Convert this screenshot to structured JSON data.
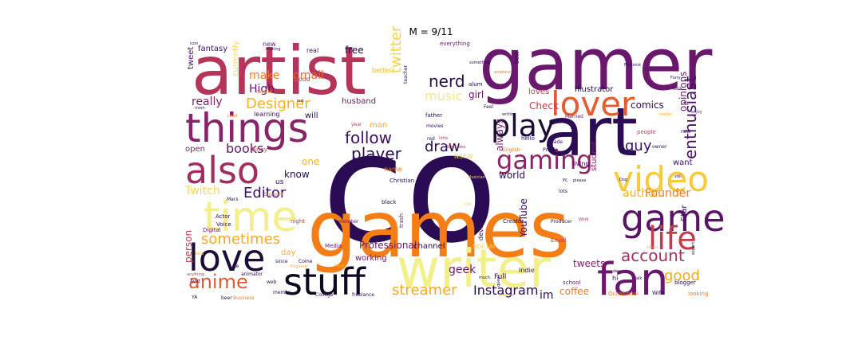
{
  "chart_data": {
    "type": "wordcloud",
    "title": "M = 9/11",
    "words": [
      {
        "text": "co",
        "weight": 100,
        "color": "#2a0b54"
      },
      {
        "text": "games",
        "weight": 86,
        "color": "#f57d15"
      },
      {
        "text": "gamer",
        "weight": 82,
        "color": "#6a176e"
      },
      {
        "text": "artist",
        "weight": 80,
        "color": "#b5345a"
      },
      {
        "text": "art",
        "weight": 74,
        "color": "#2a0b54"
      },
      {
        "text": "writer",
        "weight": 66,
        "color": "#f3f08a"
      },
      {
        "text": "fan",
        "weight": 56,
        "color": "#6a176e"
      },
      {
        "text": "time",
        "weight": 54,
        "color": "#f5ee8c"
      },
      {
        "text": "things",
        "weight": 50,
        "color": "#8a2269"
      },
      {
        "text": "also",
        "weight": 48,
        "color": "#a52c60"
      },
      {
        "text": "game",
        "weight": 46,
        "color": "#5b1368"
      },
      {
        "text": "video",
        "weight": 46,
        "color": "#f8c93b"
      },
      {
        "text": "lover",
        "weight": 44,
        "color": "#e35d2f"
      },
      {
        "text": "love",
        "weight": 42,
        "color": "#1c0c3a"
      },
      {
        "text": "stuff",
        "weight": 42,
        "color": "#0f0820"
      },
      {
        "text": "life",
        "weight": 38,
        "color": "#c13c4c"
      },
      {
        "text": "play",
        "weight": 36,
        "color": "#1c0c3a"
      },
      {
        "text": "gaming",
        "weight": 32,
        "color": "#8e2468"
      },
      {
        "text": "anime",
        "weight": 28,
        "color": "#df5a35"
      },
      {
        "text": "account",
        "weight": 24,
        "color": "#a82e5f"
      },
      {
        "text": "Designer",
        "weight": 22,
        "color": "#f9b21c"
      },
      {
        "text": "sometimes",
        "weight": 22,
        "color": "#f9a81a"
      },
      {
        "text": "follow",
        "weight": 22,
        "color": "#3b0f70"
      },
      {
        "text": "nerd",
        "weight": 22,
        "color": "#2a0b54"
      },
      {
        "text": "twitter",
        "weight": 22,
        "color": "#f8d23c"
      },
      {
        "text": "music",
        "weight": 20,
        "color": "#f5e78a"
      },
      {
        "text": "enthusiast",
        "weight": 20,
        "color": "#4b0c6b"
      },
      {
        "text": "Editor",
        "weight": 20,
        "color": "#3b0f70"
      },
      {
        "text": "player",
        "weight": 20,
        "color": "#2a0b54"
      },
      {
        "text": "streamer",
        "weight": 20,
        "color": "#f9a81a"
      },
      {
        "text": "Instagram",
        "weight": 18,
        "color": "#2a0b54"
      },
      {
        "text": "books",
        "weight": 18,
        "color": "#6a176e"
      },
      {
        "text": "guy",
        "weight": 18,
        "color": "#3b0f70"
      },
      {
        "text": "good",
        "weight": 18,
        "color": "#f9a81a"
      },
      {
        "text": "draw",
        "weight": 18,
        "color": "#2a0b54"
      },
      {
        "text": "Twitch",
        "weight": 16,
        "color": "#f9d55a"
      },
      {
        "text": "really",
        "weight": 16,
        "color": "#7b1d6b"
      },
      {
        "text": "make",
        "weight": 16,
        "color": "#f27a1d"
      },
      {
        "text": "High",
        "weight": 14,
        "color": "#6a176e"
      },
      {
        "text": "gmail",
        "weight": 16,
        "color": "#e8652a"
      },
      {
        "text": "person",
        "weight": 14,
        "color": "#c13c4c"
      },
      {
        "text": "geek",
        "weight": 16,
        "color": "#6a176e"
      },
      {
        "text": "author",
        "weight": 16,
        "color": "#f9b21c"
      },
      {
        "text": "Founder",
        "weight": 14,
        "color": "#f27a1d"
      },
      {
        "text": "Professional",
        "weight": 14,
        "color": "#6a176e"
      },
      {
        "text": "YouTube",
        "weight": 14,
        "color": "#3b0f70"
      },
      {
        "text": "tweets",
        "weight": 14,
        "color": "#7b1d6b"
      },
      {
        "text": "comics",
        "weight": 14,
        "color": "#2a0b54"
      },
      {
        "text": "Check",
        "weight": 14,
        "color": "#c13c4c"
      },
      {
        "text": "always",
        "weight": 12,
        "color": "#7b1d6b"
      },
      {
        "text": "world",
        "weight": 14,
        "color": "#2a0b54"
      },
      {
        "text": "know",
        "weight": 14,
        "color": "#2a0b54"
      },
      {
        "text": "one",
        "weight": 14,
        "color": "#f9b21c"
      },
      {
        "text": "fantasy",
        "weight": 12,
        "color": "#3b0f70"
      },
      {
        "text": "free",
        "weight": 14,
        "color": "#1c0c3a"
      },
      {
        "text": "husband",
        "weight": 12,
        "color": "#6a176e"
      },
      {
        "text": "girl",
        "weight": 14,
        "color": "#6a176e"
      },
      {
        "text": "loves",
        "weight": 12,
        "color": "#c13c4c"
      },
      {
        "text": "opinions",
        "weight": 12,
        "color": "#6a176e"
      },
      {
        "text": "student",
        "weight": 12,
        "color": "#8a2269"
      },
      {
        "text": "want",
        "weight": 12,
        "color": "#3b0f70"
      },
      {
        "text": "Illustrator",
        "weight": 12,
        "color": "#2a0b54"
      },
      {
        "text": "im",
        "weight": 16,
        "color": "#2a0b54"
      },
      {
        "text": "coffee",
        "weight": 14,
        "color": "#f27a1d"
      },
      {
        "text": "channel",
        "weight": 12,
        "color": "#2a0b54"
      },
      {
        "text": "day",
        "weight": 12,
        "color": "#f9b21c"
      },
      {
        "text": "working",
        "weight": 11,
        "color": "#6a176e"
      },
      {
        "text": "Star",
        "weight": 12,
        "color": "#2a0b54"
      },
      {
        "text": "social",
        "weight": 12,
        "color": "#f9d55a"
      },
      {
        "text": "open",
        "weight": 11,
        "color": "#7b1d6b"
      },
      {
        "text": "tweet",
        "weight": 12,
        "color": "#4b0c6b"
      },
      {
        "text": "will",
        "weight": 11,
        "color": "#2a0b54"
      },
      {
        "text": "living",
        "weight": 10,
        "color": "#4b0c6b"
      },
      {
        "text": "learning",
        "weight": 10,
        "color": "#4b0c6b"
      },
      {
        "text": "man",
        "weight": 11,
        "color": "#f9a81a"
      },
      {
        "text": "name",
        "weight": 10,
        "color": "#f27a1d"
      },
      {
        "text": "Full",
        "weight": 10,
        "color": "#2a0b54"
      },
      {
        "text": "Indie",
        "weight": 10,
        "color": "#2a0b54"
      },
      {
        "text": "developer",
        "weight": 9,
        "color": "#2a0b54"
      },
      {
        "text": "better",
        "weight": 9,
        "color": "#f9b21c"
      },
      {
        "text": "currently",
        "weight": 10,
        "color": "#f9d55a"
      },
      {
        "text": "new",
        "weight": 9,
        "color": "#6a176e"
      },
      {
        "text": "real",
        "weight": 8,
        "color": "#3b0f70"
      },
      {
        "text": "food",
        "weight": 8,
        "color": "#c13c4c"
      },
      {
        "text": "hello",
        "weight": 8,
        "color": "#2a0b54"
      },
      {
        "text": "made",
        "weight": 7,
        "color": "#3b0f70"
      },
      {
        "text": "NSFW",
        "weight": 9,
        "color": "#f9d55a"
      },
      {
        "text": "us",
        "weight": 10,
        "color": "#2a0b54"
      },
      {
        "text": "funny",
        "weight": 8,
        "color": "#c13c4c"
      },
      {
        "text": "Email",
        "weight": 8,
        "color": "#c13c4c"
      },
      {
        "text": "Creator",
        "weight": 8,
        "color": "#2a0b54"
      },
      {
        "text": "Producer",
        "weight": 7,
        "color": "#2a0b54"
      },
      {
        "text": "hi",
        "weight": 9,
        "color": "#2a0b54"
      },
      {
        "text": "blogger",
        "weight": 8,
        "color": "#2a0b54"
      },
      {
        "text": "looking",
        "weight": 8,
        "color": "#f27a1d"
      },
      {
        "text": "Wife",
        "weight": 8,
        "color": "#2a0b54"
      },
      {
        "text": "Occasional",
        "weight": 8,
        "color": "#f27a1d"
      },
      {
        "text": "school",
        "weight": 8,
        "color": "#6a176e"
      },
      {
        "text": "Instagram",
        "weight": 1,
        "color": "#2a0b54"
      },
      {
        "text": "College",
        "weight": 7,
        "color": "#2a0b54"
      },
      {
        "text": "freelance",
        "weight": 7,
        "color": "#2a0b54"
      },
      {
        "text": "Business",
        "weight": 7,
        "color": "#f27a1d"
      },
      {
        "text": "memes",
        "weight": 7,
        "color": "#2a0b54"
      },
      {
        "text": "web",
        "weight": 7,
        "color": "#2a0b54"
      },
      {
        "text": "beer",
        "weight": 7,
        "color": "#2a0b54"
      },
      {
        "text": "animator",
        "weight": 6,
        "color": "#2a0b54"
      },
      {
        "text": "Engineer",
        "weight": 6,
        "color": "#f9b21c"
      },
      {
        "text": "Media",
        "weight": 7,
        "color": "#6a176e"
      },
      {
        "text": "Actor",
        "weight": 7,
        "color": "#2a0b54"
      },
      {
        "text": "Voice",
        "weight": 7,
        "color": "#2a0b54"
      },
      {
        "text": "Digital",
        "weight": 7,
        "color": "#6a176e"
      },
      {
        "text": "night",
        "weight": 7,
        "color": "#c13c4c"
      },
      {
        "text": "member",
        "weight": 6,
        "color": "#6a176e"
      },
      {
        "text": "black",
        "weight": 7,
        "color": "#2a0b54"
      },
      {
        "text": "trash",
        "weight": 7,
        "color": "#6a176e"
      },
      {
        "text": "Christian",
        "weight": 7,
        "color": "#2a0b54"
      },
      {
        "text": "personal",
        "weight": 7,
        "color": "#2a0b54"
      },
      {
        "text": "English",
        "weight": 7,
        "color": "#f27a1d"
      },
      {
        "text": "Profile",
        "weight": 7,
        "color": "#2a0b54"
      },
      {
        "text": "Married",
        "weight": 7,
        "color": "#6a176e"
      },
      {
        "text": "Feel",
        "weight": 7,
        "color": "#2a0b54"
      },
      {
        "text": "father",
        "weight": 8,
        "color": "#2a0b54"
      },
      {
        "text": "movies",
        "weight": 7,
        "color": "#2a0b54"
      },
      {
        "text": "alum",
        "weight": 8,
        "color": "#2a0b54"
      },
      {
        "text": "teacher",
        "weight": 6,
        "color": "#2a0b54"
      },
      {
        "text": "everything",
        "weight": 7,
        "color": "#6a176e"
      },
      {
        "text": "something",
        "weight": 6,
        "color": "#2a0b54"
      },
      {
        "text": "best",
        "weight": 7,
        "color": "#2a0b54"
      },
      {
        "text": "amateur",
        "weight": 6,
        "color": "#f27a1d"
      },
      {
        "text": "Feminist",
        "weight": 6,
        "color": "#2a0b54"
      },
      {
        "text": "Furry",
        "weight": 6,
        "color": "#2a0b54"
      },
      {
        "text": "Rock",
        "weight": 6,
        "color": "#2a0b54"
      },
      {
        "text": "enjoy",
        "weight": 6,
        "color": "#6a176e"
      },
      {
        "text": "owner",
        "weight": 7,
        "color": "#2a0b54"
      },
      {
        "text": "now",
        "weight": 7,
        "color": "#2a0b54"
      },
      {
        "text": "people",
        "weight": 8,
        "color": "#c13c4c"
      },
      {
        "text": "still",
        "weight": 6,
        "color": "#2a0b54"
      },
      {
        "text": "lots",
        "weight": 7,
        "color": "#2a0b54"
      },
      {
        "text": "please",
        "weight": 6,
        "color": "#2a0b54"
      },
      {
        "text": "Dog",
        "weight": 6,
        "color": "#2a0b54"
      },
      {
        "text": "PC",
        "weight": 6,
        "color": "#2a0b54"
      },
      {
        "text": "Work",
        "weight": 6,
        "color": "#c13c4c"
      },
      {
        "text": "talk",
        "weight": 6,
        "color": "#2a0b54"
      },
      {
        "text": "dev",
        "weight": 6,
        "color": "#2a0b54"
      },
      {
        "text": "expert",
        "weight": 5,
        "color": "#2a0b54"
      },
      {
        "text": "queer",
        "weight": 6,
        "color": "#2a0b54"
      },
      {
        "text": "much",
        "weight": 6,
        "color": "#2a0b54"
      },
      {
        "text": "writing",
        "weight": 6,
        "color": "#2a0b54"
      },
      {
        "text": "year",
        "weight": 6,
        "color": "#c13c4c"
      },
      {
        "text": "red",
        "weight": 7,
        "color": "#2a0b54"
      },
      {
        "text": "little",
        "weight": 6,
        "color": "#c13c4c"
      },
      {
        "text": "Wannabe",
        "weight": 6,
        "color": "#c13c4c"
      },
      {
        "text": "anything",
        "weight": 6,
        "color": "#c13c4c"
      },
      {
        "text": "YA",
        "weight": 6,
        "color": "#2a0b54"
      },
      {
        "text": "de",
        "weight": 7,
        "color": "#2a0b54"
      },
      {
        "text": "since",
        "weight": 6,
        "color": "#2a0b54"
      },
      {
        "text": "Come",
        "weight": 6,
        "color": "#2a0b54"
      },
      {
        "text": "Mars",
        "weight": 6,
        "color": "#2a0b54"
      },
      {
        "text": "Support",
        "weight": 6,
        "color": "#f27a1d"
      },
      {
        "text": "Content",
        "weight": 6,
        "color": "#f27a1d"
      },
      {
        "text": "Lead",
        "weight": 5,
        "color": "#f27a1d"
      },
      {
        "text": "mom",
        "weight": 5,
        "color": "#2a0b54"
      },
      {
        "text": "icon",
        "weight": 5,
        "color": "#2a0b54"
      },
      {
        "text": "making",
        "weight": 6,
        "color": "#2a0b54"
      },
      {
        "text": "lost",
        "weight": 5,
        "color": "#2a0b54"
      },
      {
        "text": "Avid",
        "weight": 6,
        "color": "#2a0b54"
      },
      {
        "text": "happy",
        "weight": 6,
        "color": "#f9b21c"
      },
      {
        "text": "reader",
        "weight": 5,
        "color": "#f9b21c"
      },
      {
        "text": "smart",
        "weight": 5,
        "color": "#f9b21c"
      },
      {
        "text": "science",
        "weight": 5,
        "color": "#f9b21c"
      },
      {
        "text": "Musician",
        "weight": 6,
        "color": "#f9d55a"
      },
      {
        "text": "side",
        "weight": 5,
        "color": "#f9d55a"
      },
      {
        "text": "Life",
        "weight": 5,
        "color": "#f9d55a"
      },
      {
        "text": "hard",
        "weight": 5,
        "color": "#f9b21c"
      }
    ]
  }
}
